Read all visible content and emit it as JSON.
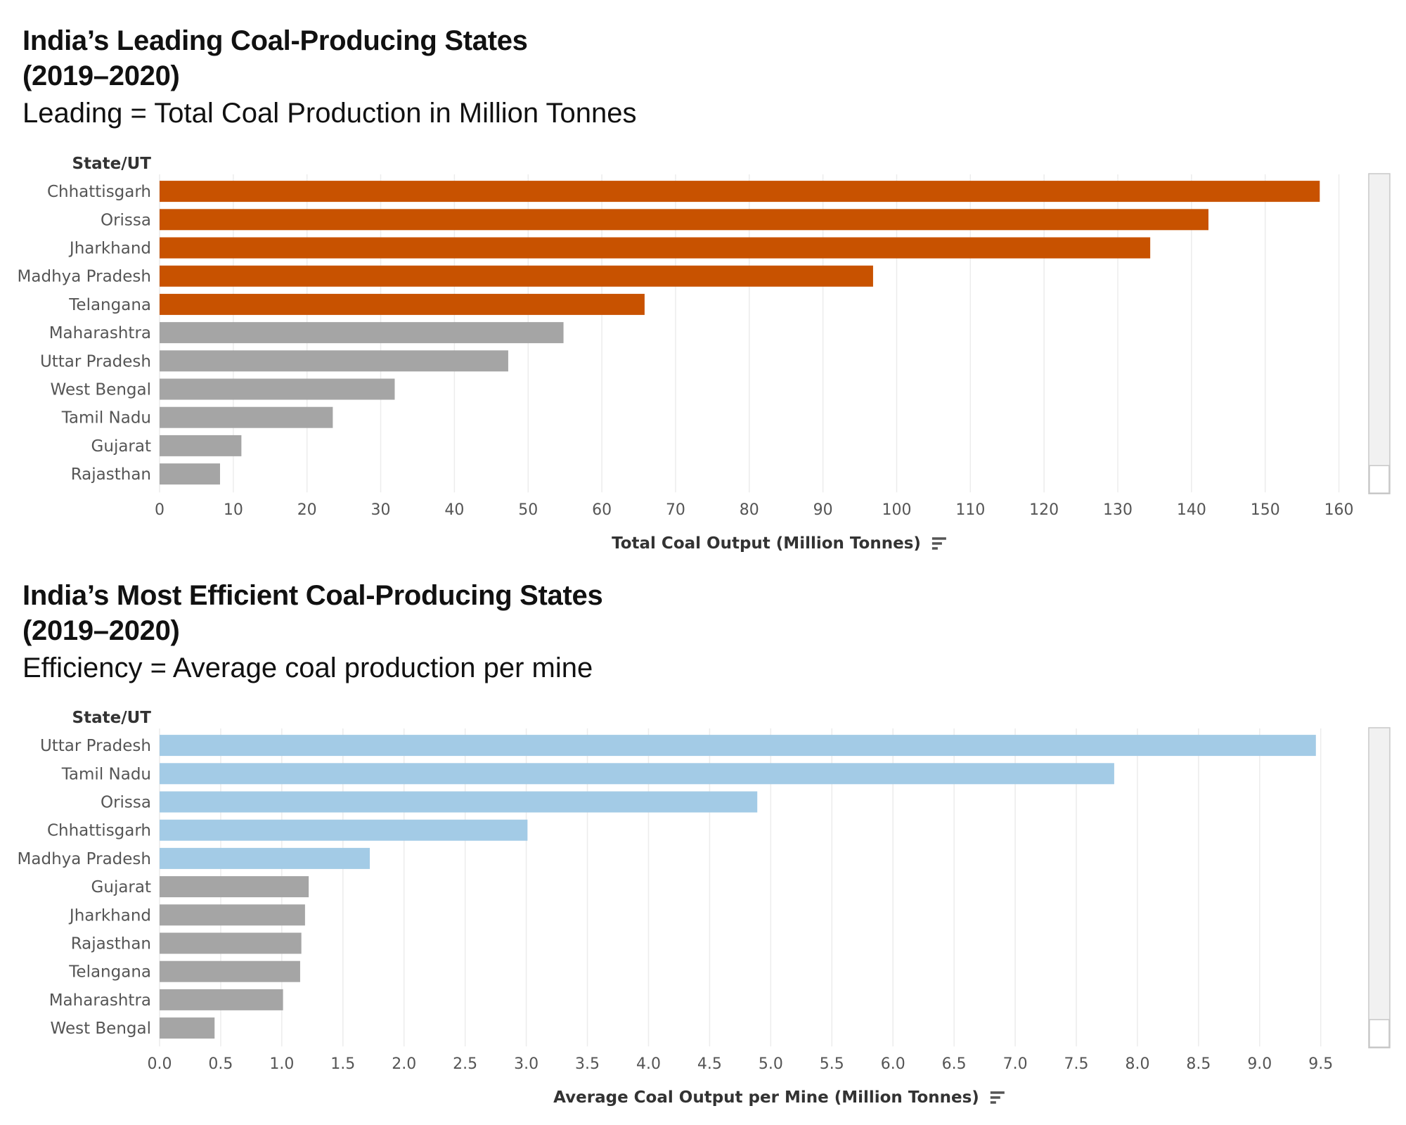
{
  "charts": [
    {
      "title_line1": "India’s Leading Coal-Producing States",
      "title_line2": "(2019–2020)",
      "subtitle": "Leading =  Total Coal Production in Million Tonnes"
    },
    {
      "title_line1": "India’s Most Efficient Coal-Producing States",
      "title_line2": "(2019–2020)",
      "subtitle": "Efficiency = Average coal production per mine"
    }
  ],
  "chart_data": [
    {
      "type": "bar",
      "orientation": "horizontal",
      "row_header": "State/UT",
      "xlabel": "Total Coal Output (Million Tonnes)",
      "xlim": [
        0,
        165
      ],
      "ticks": [
        0,
        10,
        20,
        30,
        40,
        50,
        60,
        70,
        80,
        90,
        100,
        110,
        120,
        130,
        140,
        150,
        160
      ],
      "tick_labels": [
        "0",
        "10",
        "20",
        "30",
        "40",
        "50",
        "60",
        "70",
        "80",
        "90",
        "100",
        "110",
        "120",
        "130",
        "140",
        "150",
        "160"
      ],
      "highlight_color": "#c85200",
      "base_color": "#a5a5a5",
      "highlight_count": 5,
      "categories": [
        "Chhattisgarh",
        "Orissa",
        "Jharkhand",
        "Madhya Pradesh",
        "Telangana",
        "Maharashtra",
        "Uttar Pradesh",
        "West Bengal",
        "Tamil Nadu",
        "Gujarat",
        "Rajasthan"
      ],
      "values": [
        157.4,
        142.3,
        134.4,
        96.8,
        65.8,
        54.8,
        47.3,
        31.9,
        23.5,
        11.1,
        8.2
      ]
    },
    {
      "type": "bar",
      "orientation": "horizontal",
      "row_header": "State/UT",
      "xlabel": "Average Coal Output per Mine (Million Tonnes)",
      "xlim": [
        0,
        9.95
      ],
      "ticks": [
        0,
        0.5,
        1,
        1.5,
        2,
        2.5,
        3,
        3.5,
        4,
        4.5,
        5,
        5.5,
        6,
        6.5,
        7,
        7.5,
        8,
        8.5,
        9,
        9.5
      ],
      "tick_labels": [
        "0.0",
        "0.5",
        "1.0",
        "1.5",
        "2.0",
        "2.5",
        "3.0",
        "3.5",
        "4.0",
        "4.5",
        "5.0",
        "5.5",
        "6.0",
        "6.5",
        "7.0",
        "7.5",
        "8.0",
        "8.5",
        "9.0",
        "9.5"
      ],
      "highlight_color": "#a3cbe6",
      "base_color": "#a5a5a5",
      "highlight_count": 5,
      "categories": [
        "Uttar Pradesh",
        "Tamil Nadu",
        "Orissa",
        "Chhattisgarh",
        "Madhya Pradesh",
        "Gujarat",
        "Jharkhand",
        "Rajasthan",
        "Telangana",
        "Maharashtra",
        "West Bengal"
      ],
      "values": [
        9.46,
        7.81,
        4.89,
        3.01,
        1.72,
        1.22,
        1.19,
        1.16,
        1.15,
        1.01,
        0.45
      ]
    }
  ]
}
